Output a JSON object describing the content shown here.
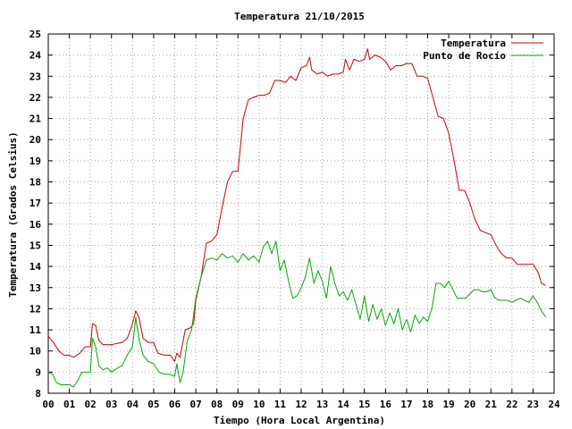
{
  "chart_data": {
    "type": "line",
    "title": "Temperatura 21/10/2015",
    "xlabel": "Tiempo (Hora Local Argentina)",
    "ylabel": "Temperatura (Grados Celsius)",
    "xlim": [
      0,
      24
    ],
    "ylim": [
      8,
      25
    ],
    "x_ticks": [
      0,
      1,
      2,
      3,
      4,
      5,
      6,
      7,
      8,
      9,
      10,
      11,
      12,
      13,
      14,
      15,
      16,
      17,
      18,
      19,
      20,
      21,
      22,
      23,
      24
    ],
    "x_tick_labels": [
      "00",
      "01",
      "02",
      "03",
      "04",
      "05",
      "06",
      "07",
      "08",
      "09",
      "10",
      "11",
      "12",
      "13",
      "14",
      "15",
      "16",
      "17",
      "18",
      "19",
      "20",
      "21",
      "22",
      "23",
      "24"
    ],
    "y_ticks": [
      8,
      9,
      10,
      11,
      12,
      13,
      14,
      15,
      16,
      17,
      18,
      19,
      20,
      21,
      22,
      23,
      24,
      25
    ],
    "grid": true,
    "legend_position": "top-right",
    "series": [
      {
        "name": "Temperatura",
        "color": "#cc0000",
        "points": [
          [
            0,
            10.7
          ],
          [
            0.25,
            10.4
          ],
          [
            0.5,
            10.0
          ],
          [
            0.75,
            9.8
          ],
          [
            1.0,
            9.8
          ],
          [
            1.2,
            9.7
          ],
          [
            1.5,
            9.9
          ],
          [
            1.75,
            10.2
          ],
          [
            2.0,
            10.2
          ],
          [
            2.1,
            11.3
          ],
          [
            2.25,
            11.2
          ],
          [
            2.4,
            10.5
          ],
          [
            2.6,
            10.3
          ],
          [
            3.0,
            10.3
          ],
          [
            3.5,
            10.4
          ],
          [
            3.75,
            10.6
          ],
          [
            4.0,
            11.3
          ],
          [
            4.15,
            11.9
          ],
          [
            4.3,
            11.6
          ],
          [
            4.5,
            10.6
          ],
          [
            4.75,
            10.4
          ],
          [
            5.0,
            10.4
          ],
          [
            5.2,
            9.9
          ],
          [
            5.5,
            9.8
          ],
          [
            5.8,
            9.8
          ],
          [
            6.0,
            9.5
          ],
          [
            6.1,
            9.9
          ],
          [
            6.25,
            9.7
          ],
          [
            6.5,
            11.0
          ],
          [
            6.75,
            11.1
          ],
          [
            6.9,
            11.3
          ],
          [
            7.0,
            12.4
          ],
          [
            7.25,
            13.5
          ],
          [
            7.5,
            15.1
          ],
          [
            7.75,
            15.2
          ],
          [
            8.0,
            15.5
          ],
          [
            8.25,
            16.8
          ],
          [
            8.5,
            18.0
          ],
          [
            8.75,
            18.5
          ],
          [
            9.0,
            18.5
          ],
          [
            9.25,
            21.0
          ],
          [
            9.5,
            21.9
          ],
          [
            9.75,
            22.0
          ],
          [
            10.0,
            22.1
          ],
          [
            10.25,
            22.1
          ],
          [
            10.5,
            22.2
          ],
          [
            10.75,
            22.8
          ],
          [
            11.0,
            22.8
          ],
          [
            11.25,
            22.7
          ],
          [
            11.5,
            23.0
          ],
          [
            11.75,
            22.8
          ],
          [
            12.0,
            23.4
          ],
          [
            12.25,
            23.5
          ],
          [
            12.4,
            23.9
          ],
          [
            12.5,
            23.3
          ],
          [
            12.75,
            23.1
          ],
          [
            13.0,
            23.2
          ],
          [
            13.25,
            23.0
          ],
          [
            13.5,
            23.1
          ],
          [
            13.75,
            23.1
          ],
          [
            14.0,
            23.2
          ],
          [
            14.1,
            23.8
          ],
          [
            14.3,
            23.3
          ],
          [
            14.5,
            23.8
          ],
          [
            14.75,
            23.7
          ],
          [
            15.0,
            23.8
          ],
          [
            15.15,
            24.3
          ],
          [
            15.25,
            23.8
          ],
          [
            15.5,
            24.0
          ],
          [
            15.75,
            23.9
          ],
          [
            16.0,
            23.7
          ],
          [
            16.25,
            23.3
          ],
          [
            16.5,
            23.5
          ],
          [
            16.75,
            23.5
          ],
          [
            17.0,
            23.6
          ],
          [
            17.25,
            23.6
          ],
          [
            17.5,
            23.0
          ],
          [
            17.75,
            23.0
          ],
          [
            18.0,
            22.9
          ],
          [
            18.25,
            22.0
          ],
          [
            18.5,
            21.1
          ],
          [
            18.75,
            21.0
          ],
          [
            19.0,
            20.3
          ],
          [
            19.25,
            19.0
          ],
          [
            19.5,
            17.6
          ],
          [
            19.75,
            17.6
          ],
          [
            20.0,
            17.0
          ],
          [
            20.25,
            16.2
          ],
          [
            20.5,
            15.7
          ],
          [
            20.75,
            15.6
          ],
          [
            21.0,
            15.5
          ],
          [
            21.25,
            15.0
          ],
          [
            21.5,
            14.6
          ],
          [
            21.75,
            14.4
          ],
          [
            22.0,
            14.4
          ],
          [
            22.25,
            14.1
          ],
          [
            22.5,
            14.1
          ],
          [
            22.75,
            14.1
          ],
          [
            23.0,
            14.1
          ],
          [
            23.25,
            13.7
          ],
          [
            23.4,
            13.2
          ],
          [
            23.6,
            13.1
          ]
        ]
      },
      {
        "name": "Punto de Rocío",
        "color": "#00aa00",
        "points": [
          [
            0,
            9.0
          ],
          [
            0.2,
            8.9
          ],
          [
            0.4,
            8.5
          ],
          [
            0.6,
            8.4
          ],
          [
            1.0,
            8.4
          ],
          [
            1.2,
            8.3
          ],
          [
            1.4,
            8.6
          ],
          [
            1.6,
            9.0
          ],
          [
            1.8,
            9.0
          ],
          [
            2.0,
            9.0
          ],
          [
            2.1,
            10.6
          ],
          [
            2.25,
            10.2
          ],
          [
            2.4,
            9.3
          ],
          [
            2.6,
            9.1
          ],
          [
            2.8,
            9.2
          ],
          [
            3.0,
            9.0
          ],
          [
            3.3,
            9.2
          ],
          [
            3.5,
            9.3
          ],
          [
            3.75,
            9.8
          ],
          [
            4.0,
            10.2
          ],
          [
            4.15,
            11.6
          ],
          [
            4.3,
            10.6
          ],
          [
            4.5,
            9.8
          ],
          [
            4.75,
            9.5
          ],
          [
            5.0,
            9.4
          ],
          [
            5.25,
            9.0
          ],
          [
            5.5,
            8.9
          ],
          [
            5.75,
            8.9
          ],
          [
            6.0,
            8.8
          ],
          [
            6.1,
            9.4
          ],
          [
            6.25,
            8.5
          ],
          [
            6.4,
            9.0
          ],
          [
            6.6,
            10.5
          ],
          [
            6.8,
            11.0
          ],
          [
            7.0,
            12.5
          ],
          [
            7.25,
            13.5
          ],
          [
            7.5,
            14.3
          ],
          [
            7.75,
            14.4
          ],
          [
            8.0,
            14.3
          ],
          [
            8.25,
            14.6
          ],
          [
            8.5,
            14.4
          ],
          [
            8.75,
            14.5
          ],
          [
            9.0,
            14.2
          ],
          [
            9.25,
            14.6
          ],
          [
            9.5,
            14.3
          ],
          [
            9.75,
            14.5
          ],
          [
            10.0,
            14.2
          ],
          [
            10.2,
            14.9
          ],
          [
            10.4,
            15.2
          ],
          [
            10.6,
            14.6
          ],
          [
            10.8,
            15.2
          ],
          [
            11.0,
            13.8
          ],
          [
            11.2,
            14.3
          ],
          [
            11.4,
            13.3
          ],
          [
            11.6,
            12.5
          ],
          [
            11.8,
            12.6
          ],
          [
            12.0,
            13.0
          ],
          [
            12.2,
            13.5
          ],
          [
            12.4,
            14.4
          ],
          [
            12.6,
            13.2
          ],
          [
            12.8,
            13.8
          ],
          [
            13.0,
            13.3
          ],
          [
            13.2,
            12.5
          ],
          [
            13.4,
            14.0
          ],
          [
            13.6,
            13.2
          ],
          [
            13.8,
            12.6
          ],
          [
            14.0,
            12.8
          ],
          [
            14.2,
            12.4
          ],
          [
            14.4,
            12.9
          ],
          [
            14.6,
            12.2
          ],
          [
            14.8,
            11.5
          ],
          [
            15.0,
            12.6
          ],
          [
            15.2,
            11.4
          ],
          [
            15.4,
            12.2
          ],
          [
            15.6,
            11.5
          ],
          [
            15.8,
            12.0
          ],
          [
            16.0,
            11.2
          ],
          [
            16.2,
            11.8
          ],
          [
            16.4,
            11.3
          ],
          [
            16.6,
            12.0
          ],
          [
            16.8,
            11.0
          ],
          [
            17.0,
            11.5
          ],
          [
            17.2,
            10.9
          ],
          [
            17.4,
            11.7
          ],
          [
            17.6,
            11.3
          ],
          [
            17.8,
            11.6
          ],
          [
            18.0,
            11.4
          ],
          [
            18.2,
            12.0
          ],
          [
            18.4,
            13.2
          ],
          [
            18.6,
            13.2
          ],
          [
            18.8,
            13.0
          ],
          [
            19.0,
            13.3
          ],
          [
            19.2,
            12.9
          ],
          [
            19.4,
            12.5
          ],
          [
            19.6,
            12.5
          ],
          [
            19.8,
            12.5
          ],
          [
            20.0,
            12.7
          ],
          [
            20.2,
            12.9
          ],
          [
            20.4,
            12.9
          ],
          [
            20.6,
            12.8
          ],
          [
            20.8,
            12.8
          ],
          [
            21.0,
            12.9
          ],
          [
            21.2,
            12.5
          ],
          [
            21.4,
            12.4
          ],
          [
            21.6,
            12.4
          ],
          [
            21.8,
            12.4
          ],
          [
            22.0,
            12.3
          ],
          [
            22.2,
            12.4
          ],
          [
            22.4,
            12.5
          ],
          [
            22.6,
            12.4
          ],
          [
            22.8,
            12.3
          ],
          [
            23.0,
            12.6
          ],
          [
            23.2,
            12.3
          ],
          [
            23.4,
            11.9
          ],
          [
            23.6,
            11.6
          ]
        ]
      }
    ]
  }
}
